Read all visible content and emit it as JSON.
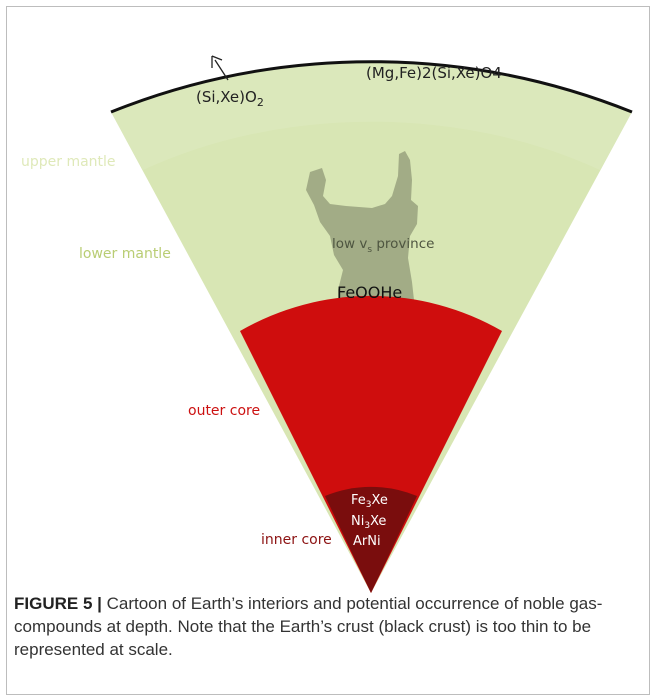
{
  "colors": {
    "mantle": "#d8e6b4",
    "mantle_upper": "#e1ecc3",
    "province": "#a2ac86",
    "outer_core": "#cf0d0d",
    "inner_core": "#7a0d0d",
    "crust": "#111111",
    "upper_mantle_label": "#dfe9b9",
    "lower_mantle_label": "#b9cd74",
    "outer_core_label": "#cc1111",
    "inner_core_label": "#8c1212"
  },
  "labels": {
    "sio2": "(Si,Xe)O",
    "sio2_sub": "2",
    "mgfe": "(Mg,Fe)2(Si,Xe)O4",
    "upper_mantle": "upper mantle",
    "lower_mantle": "lower mantle",
    "low_vs_prefix": "low v",
    "low_vs_sub": "s",
    "low_vs_suffix": " province",
    "feoohe": "FeOOHe",
    "outer_core": "outer core",
    "inner_core": "inner core",
    "fe3xe_a": "Fe",
    "fe3xe_sub": "3",
    "fe3xe_b": "Xe",
    "ni3xe_a": "Ni",
    "ni3xe_sub": "3",
    "ni3xe_b": "Xe",
    "arni": "ArNi"
  },
  "caption": {
    "label": "FIGURE 5 |",
    "text": " Cartoon of Earth’s interiors and potential occurrence of noble gas-compounds at depth. Note that the Earth’s crust (black crust) is too thin to be represented at scale."
  }
}
